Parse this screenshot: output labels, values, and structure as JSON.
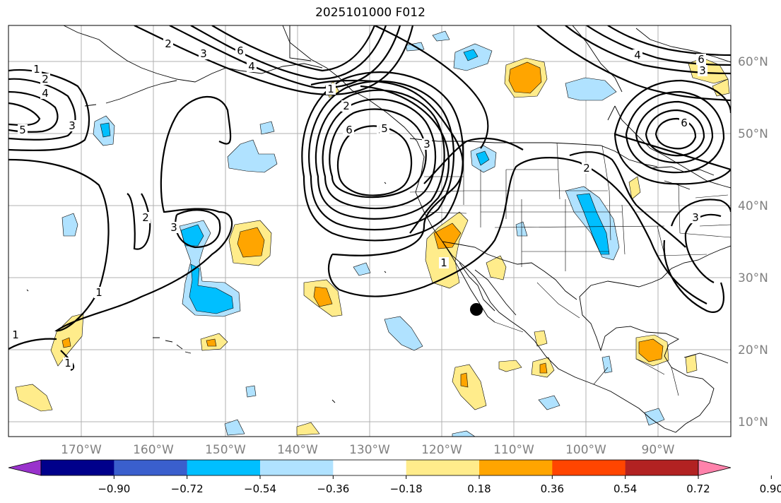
{
  "title": "2025101000 F012",
  "map": {
    "lon_ticks": [
      "170°W",
      "160°W",
      "150°W",
      "140°W",
      "130°W",
      "120°W",
      "110°W",
      "100°W",
      "90°W"
    ],
    "lat_ticks": [
      "60°N",
      "50°N",
      "40°N",
      "30°N",
      "20°N",
      "10°N"
    ],
    "grid": true,
    "marker": {
      "name": "black-dot",
      "color": "#000000"
    },
    "contour_color": "#000000",
    "contour_labels": [
      {
        "text": "1"
      },
      {
        "text": "2"
      },
      {
        "text": "4"
      },
      {
        "text": "5"
      },
      {
        "text": "3"
      },
      {
        "text": "2"
      },
      {
        "text": "3"
      },
      {
        "text": "4"
      },
      {
        "text": "6"
      },
      {
        "text": "5"
      },
      {
        "text": "6"
      },
      {
        "text": "1"
      },
      {
        "text": "2"
      },
      {
        "text": "3"
      },
      {
        "text": "6"
      },
      {
        "text": "5"
      },
      {
        "text": "6"
      },
      {
        "text": "3"
      },
      {
        "text": "2"
      },
      {
        "text": "3"
      },
      {
        "text": "2"
      },
      {
        "text": "1"
      },
      {
        "text": "1"
      },
      {
        "text": "1"
      },
      {
        "text": "1"
      },
      {
        "text": "4"
      },
      {
        "text": "6"
      },
      {
        "text": "3"
      }
    ]
  },
  "colorbar": {
    "tick_labels": [
      "−0.90",
      "−0.72",
      "−0.54",
      "−0.36",
      "−0.18",
      "0.18",
      "0.36",
      "0.54",
      "0.72",
      "0.90"
    ],
    "colors": [
      "#9932cc",
      "#00008b",
      "#3a5fcd",
      "#00bfff",
      "#b0e2ff",
      "#ffffff",
      "#ffec8b",
      "#ffa500",
      "#ff4500",
      "#b22222",
      "#ff82ab"
    ]
  }
}
